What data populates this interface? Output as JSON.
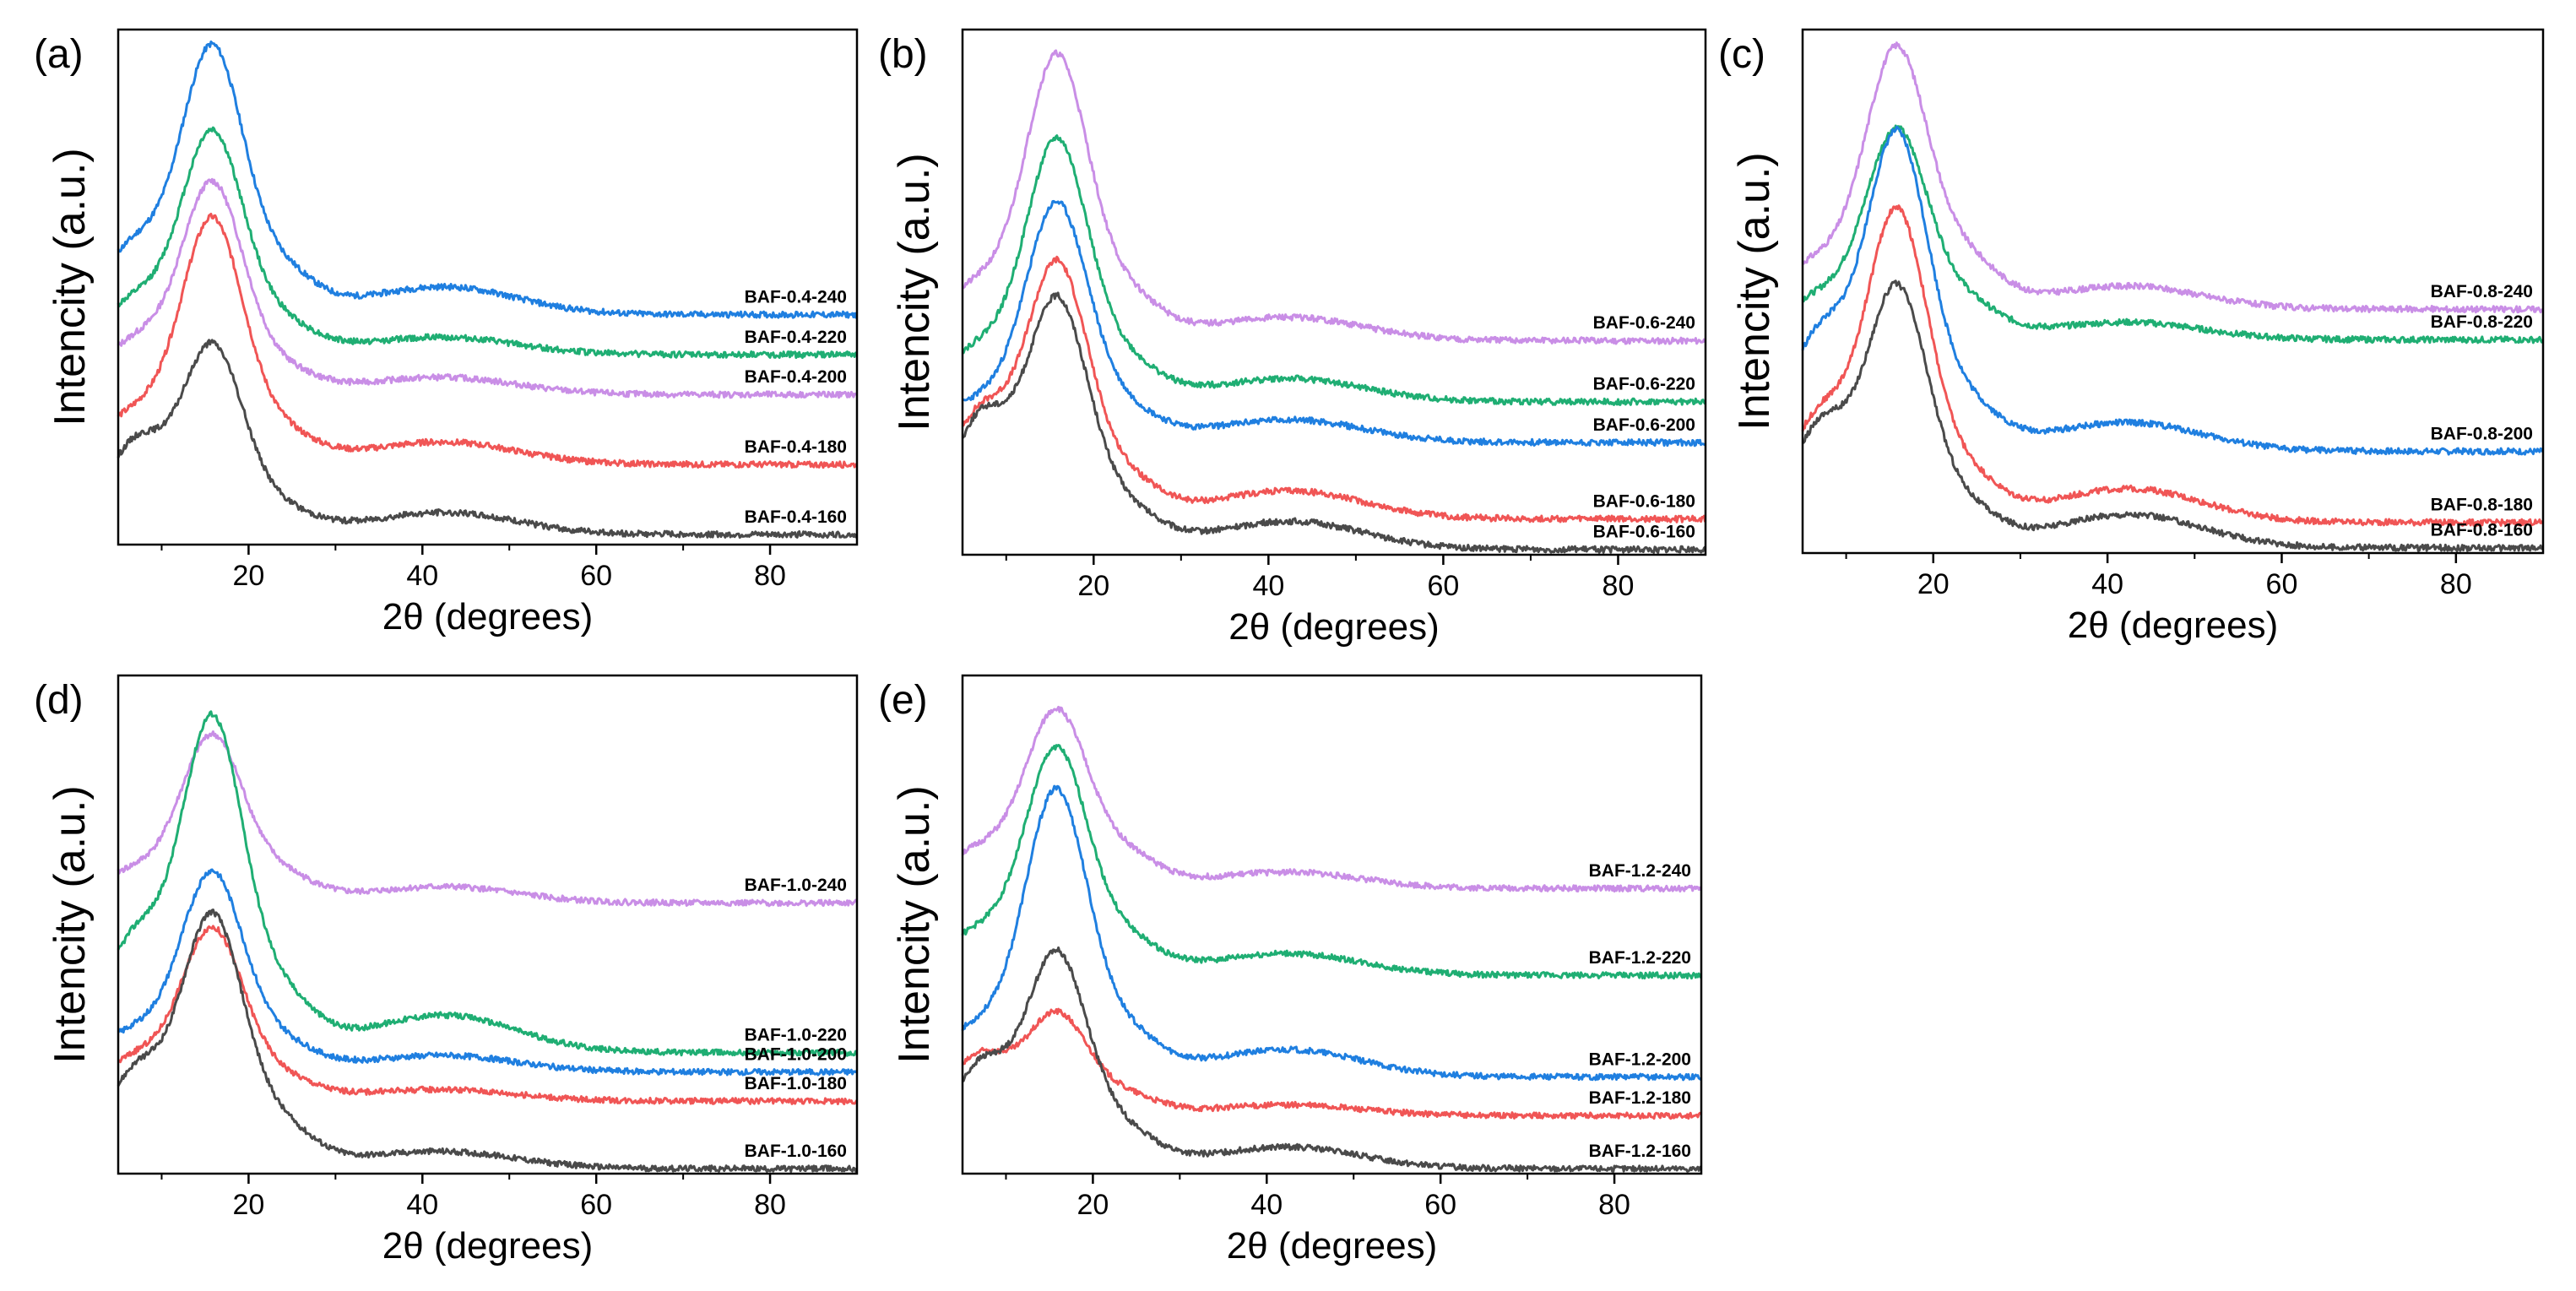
{
  "chart_data": [
    {
      "panel": "(a)",
      "type": "line",
      "xlabel": "2θ (degrees)",
      "ylabel": "Intencity (a.u.)",
      "xlim": [
        5,
        90
      ],
      "xticks": [
        20,
        40,
        60,
        80
      ],
      "ylim": [
        0,
        1
      ],
      "series": [
        {
          "name": "BAF-0.4-240",
          "color": "#1f7fe0",
          "offset": 0.46,
          "peak": 0.48,
          "shoulder": 0.06,
          "hump": 0.05,
          "low": 0.08,
          "seed": 11
        },
        {
          "name": "BAF-0.4-220",
          "color": "#1fae73",
          "offset": 0.38,
          "peak": 0.4,
          "shoulder": 0.04,
          "hump": 0.03,
          "low": 0.06,
          "seed": 12
        },
        {
          "name": "BAF-0.4-200",
          "color": "#c98ee6",
          "offset": 0.3,
          "peak": 0.38,
          "shoulder": 0.03,
          "hump": 0.03,
          "low": 0.06,
          "seed": 13
        },
        {
          "name": "BAF-0.4-180",
          "color": "#f05555",
          "offset": 0.16,
          "peak": 0.44,
          "shoulder": 0.04,
          "hump": 0.04,
          "low": 0.05,
          "seed": 14
        },
        {
          "name": "BAF-0.4-160",
          "color": "#4a4a4a",
          "offset": 0.02,
          "peak": 0.34,
          "shoulder": 0.03,
          "hump": 0.04,
          "low": 0.14,
          "seed": 15
        }
      ]
    },
    {
      "panel": "(b)",
      "type": "line",
      "xlabel": "2θ (degrees)",
      "ylabel": "Intencity (a.u.)",
      "xlim": [
        5,
        90
      ],
      "xticks": [
        20,
        40,
        60,
        80
      ],
      "ylim": [
        0,
        1
      ],
      "series": [
        {
          "name": "BAF-0.6-240",
          "color": "#c98ee6",
          "offset": 0.42,
          "peak": 0.5,
          "shoulder": 0.06,
          "hump": 0.04,
          "low": 0.05,
          "seed": 21
        },
        {
          "name": "BAF-0.6-220",
          "color": "#1fae73",
          "offset": 0.3,
          "peak": 0.46,
          "shoulder": 0.05,
          "hump": 0.04,
          "low": 0.05,
          "seed": 22
        },
        {
          "name": "BAF-0.6-200",
          "color": "#1f7fe0",
          "offset": 0.22,
          "peak": 0.42,
          "shoulder": 0.04,
          "hump": 0.04,
          "low": 0.03,
          "seed": 23
        },
        {
          "name": "BAF-0.6-180",
          "color": "#f05555",
          "offset": 0.07,
          "peak": 0.45,
          "shoulder": 0.05,
          "hump": 0.05,
          "low": 0.15,
          "seed": 24
        },
        {
          "name": "BAF-0.6-160",
          "color": "#4a4a4a",
          "offset": 0.01,
          "peak": 0.44,
          "shoulder": 0.05,
          "hump": 0.05,
          "low": 0.2,
          "seed": 25
        }
      ]
    },
    {
      "panel": "(c)",
      "type": "line",
      "xlabel": "2θ (degrees)",
      "ylabel": "Intencity (a.u.)",
      "xlim": [
        5,
        90
      ],
      "xticks": [
        20,
        40,
        60,
        80
      ],
      "ylim": [
        0,
        1
      ],
      "series": [
        {
          "name": "BAF-0.8-240",
          "color": "#c98ee6",
          "offset": 0.48,
          "peak": 0.46,
          "shoulder": 0.07,
          "hump": 0.04,
          "low": 0.04,
          "seed": 31
        },
        {
          "name": "BAF-0.8-220",
          "color": "#1fae73",
          "offset": 0.42,
          "peak": 0.37,
          "shoulder": 0.05,
          "hump": 0.03,
          "low": 0.04,
          "seed": 32
        },
        {
          "name": "BAF-0.8-200",
          "color": "#1f7fe0",
          "offset": 0.2,
          "peak": 0.56,
          "shoulder": 0.06,
          "hump": 0.05,
          "low": 0.16,
          "seed": 33
        },
        {
          "name": "BAF-0.8-180",
          "color": "#f05555",
          "offset": 0.06,
          "peak": 0.55,
          "shoulder": 0.06,
          "hump": 0.06,
          "low": 0.14,
          "seed": 34
        },
        {
          "name": "BAF-0.8-160",
          "color": "#4a4a4a",
          "offset": 0.01,
          "peak": 0.46,
          "shoulder": 0.05,
          "hump": 0.06,
          "low": 0.18,
          "seed": 35
        }
      ]
    },
    {
      "panel": "(d)",
      "type": "line",
      "xlabel": "2θ (degrees)",
      "ylabel": "Intencity (a.u.)",
      "xlim": [
        5,
        90
      ],
      "xticks": [
        20,
        40,
        60,
        80
      ],
      "ylim": [
        0,
        1
      ],
      "series": [
        {
          "name": "BAF-1.0-240",
          "color": "#c98ee6",
          "offset": 0.56,
          "peak": 0.31,
          "shoulder": 0.04,
          "hump": 0.03,
          "low": 0.03,
          "seed": 41
        },
        {
          "name": "BAF-1.0-220",
          "color": "#1fae73",
          "offset": 0.25,
          "peak": 0.62,
          "shoulder": 0.08,
          "hump": 0.07,
          "low": 0.16,
          "seed": 42
        },
        {
          "name": "BAF-1.0-200",
          "color": "#1f7fe0",
          "offset": 0.21,
          "peak": 0.37,
          "shoulder": 0.04,
          "hump": 0.03,
          "low": 0.04,
          "seed": 43
        },
        {
          "name": "BAF-1.0-180",
          "color": "#f05555",
          "offset": 0.15,
          "peak": 0.32,
          "shoulder": 0.03,
          "hump": 0.02,
          "low": 0.05,
          "seed": 44
        },
        {
          "name": "BAF-1.0-160",
          "color": "#4a4a4a",
          "offset": 0.01,
          "peak": 0.47,
          "shoulder": 0.06,
          "hump": 0.03,
          "low": 0.14,
          "seed": 45
        }
      ]
    },
    {
      "panel": "(e)",
      "type": "line",
      "xlabel": "2θ (degrees)",
      "ylabel": "Intencity (a.u.)",
      "xlim": [
        5,
        90
      ],
      "xticks": [
        20,
        40,
        60,
        80
      ],
      "ylim": [
        0,
        1
      ],
      "series": [
        {
          "name": "BAF-1.2-240",
          "color": "#c98ee6",
          "offset": 0.59,
          "peak": 0.33,
          "shoulder": 0.05,
          "hump": 0.03,
          "low": 0.04,
          "seed": 51
        },
        {
          "name": "BAF-1.2-220",
          "color": "#1fae73",
          "offset": 0.41,
          "peak": 0.42,
          "shoulder": 0.05,
          "hump": 0.04,
          "low": 0.04,
          "seed": 52
        },
        {
          "name": "BAF-1.2-200",
          "color": "#1f7fe0",
          "offset": 0.2,
          "peak": 0.53,
          "shoulder": 0.06,
          "hump": 0.05,
          "low": 0.04,
          "seed": 53
        },
        {
          "name": "BAF-1.2-180",
          "color": "#f05555",
          "offset": 0.12,
          "peak": 0.19,
          "shoulder": 0.03,
          "hump": 0.02,
          "low": 0.1,
          "seed": 54
        },
        {
          "name": "BAF-1.2-160",
          "color": "#4a4a4a",
          "offset": 0.01,
          "peak": 0.4,
          "shoulder": 0.05,
          "hump": 0.04,
          "low": 0.16,
          "seed": 55
        }
      ]
    }
  ]
}
